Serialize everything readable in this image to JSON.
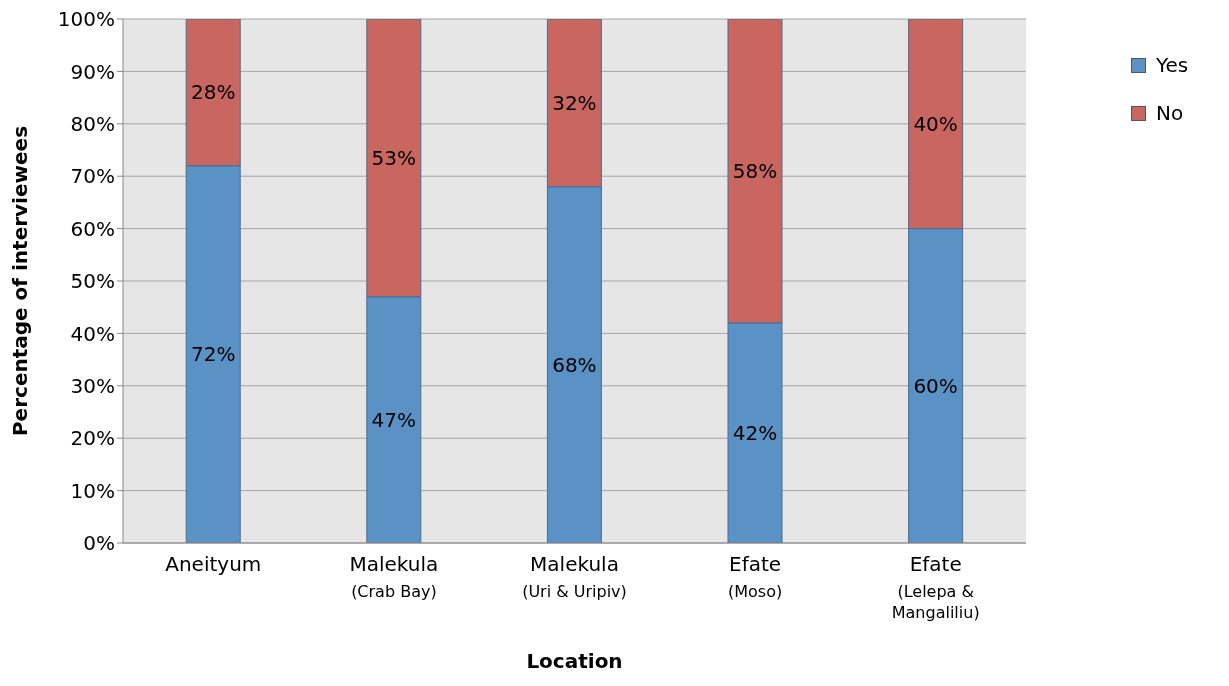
{
  "chart_data": {
    "type": "bar",
    "stacked": true,
    "xlabel": "Location",
    "ylabel": "Percentage of interviewees",
    "categories": [
      "Aneityum",
      "Malekula\n(Crab Bay)",
      "Malekula\n(Uri & Uripiv)",
      "Efate\n(Moso)",
      "Efate\n(Lelepa &\nMangaliliu)"
    ],
    "series": [
      {
        "name": "Yes",
        "color": "#5b92c6",
        "values": [
          72,
          47,
          68,
          42,
          60
        ],
        "value_labels": [
          "72%",
          "47%",
          "68%",
          "42%",
          "60%"
        ]
      },
      {
        "name": "No",
        "color": "#c9665f",
        "values": [
          28,
          53,
          32,
          58,
          40
        ],
        "value_labels": [
          "28%",
          "53%",
          "32%",
          "58%",
          "40%"
        ]
      }
    ],
    "ylim": [
      0,
      100
    ],
    "yticks": [
      {
        "value": 0,
        "label": "0%"
      },
      {
        "value": 10,
        "label": "10%"
      },
      {
        "value": 20,
        "label": "20%"
      },
      {
        "value": 30,
        "label": "30%"
      },
      {
        "value": 40,
        "label": "40%"
      },
      {
        "value": 50,
        "label": "50%"
      },
      {
        "value": 60,
        "label": "60%"
      },
      {
        "value": 70,
        "label": "70%"
      },
      {
        "value": 80,
        "label": "80%"
      },
      {
        "value": 90,
        "label": "90%"
      },
      {
        "value": 100,
        "label": "100%"
      }
    ],
    "grid": "y",
    "legend": "top right"
  }
}
